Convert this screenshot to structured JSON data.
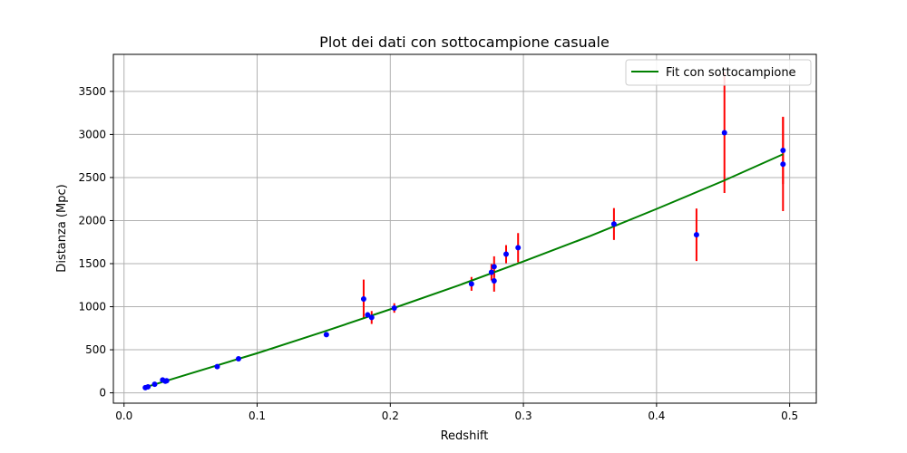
{
  "chart_data": {
    "type": "scatter",
    "title": "Plot dei dati con sottocampione casuale",
    "xlabel": "Redshift",
    "ylabel": "Distanza (Mpc)",
    "xlim": [
      -0.008,
      0.52
    ],
    "ylim": [
      -120,
      3930
    ],
    "xticks": [
      0.0,
      0.1,
      0.2,
      0.3,
      0.4,
      0.5
    ],
    "xtick_labels": [
      "0.0",
      "0.1",
      "0.2",
      "0.3",
      "0.4",
      "0.5"
    ],
    "yticks": [
      0,
      500,
      1000,
      1500,
      2000,
      2500,
      3000,
      3500
    ],
    "ytick_labels": [
      "0",
      "500",
      "1000",
      "1500",
      "2000",
      "2500",
      "3000",
      "3500"
    ],
    "grid": true,
    "legend_position": "top-right",
    "series": [
      {
        "kind": "errorbar",
        "marker_color": "#0000ff",
        "error_color": "#ff0000",
        "points": [
          {
            "x": 0.016,
            "y": 60,
            "err": 0
          },
          {
            "x": 0.018,
            "y": 70,
            "err": 0
          },
          {
            "x": 0.023,
            "y": 100,
            "err": 0
          },
          {
            "x": 0.029,
            "y": 150,
            "err": 0
          },
          {
            "x": 0.031,
            "y": 135,
            "err": 0
          },
          {
            "x": 0.032,
            "y": 140,
            "err": 0
          },
          {
            "x": 0.07,
            "y": 305,
            "err": 0
          },
          {
            "x": 0.086,
            "y": 395,
            "err": 0
          },
          {
            "x": 0.152,
            "y": 675,
            "err": 25
          },
          {
            "x": 0.18,
            "y": 1090,
            "err": 225
          },
          {
            "x": 0.183,
            "y": 905,
            "err": 30
          },
          {
            "x": 0.186,
            "y": 875,
            "err": 75
          },
          {
            "x": 0.203,
            "y": 985,
            "err": 55
          },
          {
            "x": 0.261,
            "y": 1265,
            "err": 80
          },
          {
            "x": 0.276,
            "y": 1400,
            "err": 95
          },
          {
            "x": 0.278,
            "y": 1465,
            "err": 120
          },
          {
            "x": 0.278,
            "y": 1300,
            "err": 125
          },
          {
            "x": 0.287,
            "y": 1610,
            "err": 105
          },
          {
            "x": 0.296,
            "y": 1685,
            "err": 170
          },
          {
            "x": 0.368,
            "y": 1960,
            "err": 185
          },
          {
            "x": 0.43,
            "y": 1835,
            "err": 305
          },
          {
            "x": 0.451,
            "y": 3020,
            "err": 700
          },
          {
            "x": 0.495,
            "y": 2815,
            "err": 390
          },
          {
            "x": 0.495,
            "y": 2655,
            "err": 545
          }
        ]
      },
      {
        "kind": "line",
        "name": "Fit con sottocampione",
        "color": "#008000",
        "x": [
          0.016,
          0.05,
          0.1,
          0.15,
          0.2,
          0.25,
          0.3,
          0.35,
          0.4,
          0.45,
          0.495
        ],
        "y": [
          65,
          225,
          460,
          710,
          970,
          1240,
          1525,
          1820,
          2135,
          2460,
          2770
        ]
      }
    ]
  }
}
